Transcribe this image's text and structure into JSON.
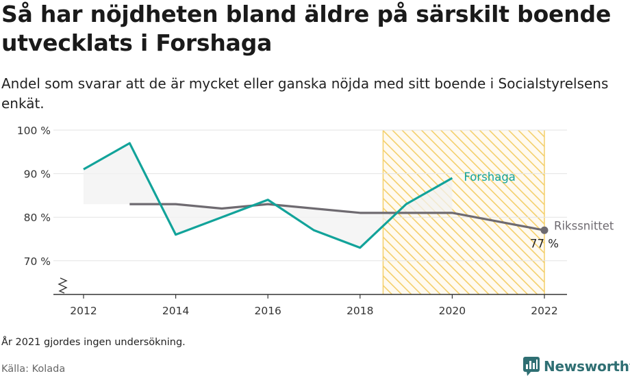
{
  "header": {
    "title": "Så har nöjdheten bland äldre på särskilt boende utvecklats i Forshaga",
    "subtitle": "Andel som svarar att de är mycket eller ganska nöjda med sitt boende i Socialstyrelsens enkät."
  },
  "footer": {
    "note": "År 2021 gjordes ingen undersökning.",
    "source": "Källa: Kolada",
    "brand": "Newsworthy"
  },
  "colors": {
    "forshaga": "#12a39a",
    "riksnittet": "#6e6a70",
    "highlight": "#f4cf6a",
    "grid": "#e3e3e3"
  },
  "chart_data": {
    "type": "line",
    "ylim": [
      62,
      100
    ],
    "xlim": [
      2012,
      2022
    ],
    "y_ticks": [
      {
        "value": 70,
        "label": "70 %"
      },
      {
        "value": 80,
        "label": "80 %"
      },
      {
        "value": 90,
        "label": "90 %"
      },
      {
        "value": 100,
        "label": "100 %"
      }
    ],
    "x_ticks": [
      {
        "value": 2012,
        "label": "2012"
      },
      {
        "value": 2014,
        "label": "2014"
      },
      {
        "value": 2016,
        "label": "2016"
      },
      {
        "value": 2018,
        "label": "2018"
      },
      {
        "value": 2020,
        "label": "2020"
      },
      {
        "value": 2022,
        "label": "2022"
      }
    ],
    "highlight_range": [
      2018.5,
      2022
    ],
    "axis_break": true,
    "series": [
      {
        "key": "forshaga",
        "name": "Forshaga",
        "x": [
          2012,
          2013,
          2014,
          2015,
          2016,
          2017,
          2018,
          2019,
          2020
        ],
        "y": [
          91,
          97,
          76,
          80,
          84,
          77,
          73,
          83,
          89
        ]
      },
      {
        "key": "riksnittet",
        "name": "Rikssnittet",
        "x": [
          2013,
          2014,
          2015,
          2016,
          2017,
          2018,
          2019,
          2020,
          2022
        ],
        "y": [
          83,
          83,
          82,
          83,
          82,
          81,
          81,
          81,
          77
        ],
        "end_label": "77 %"
      }
    ]
  }
}
